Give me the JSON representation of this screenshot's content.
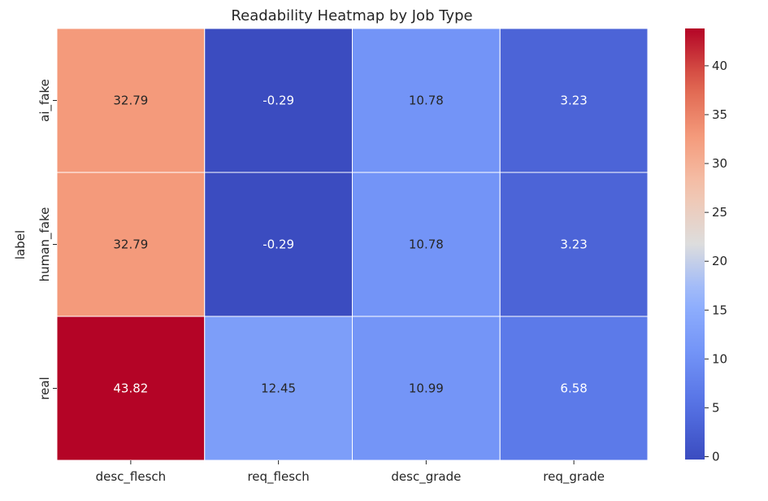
{
  "chart_data": {
    "type": "heatmap",
    "title": "Readability Heatmap by Job Type",
    "xlabel": "",
    "ylabel": "label",
    "columns": [
      "desc_flesch",
      "req_flesch",
      "desc_grade",
      "req_grade"
    ],
    "rows": [
      "ai_fake",
      "human_fake",
      "real"
    ],
    "values": [
      [
        32.79,
        -0.29,
        10.78,
        3.23
      ],
      [
        32.79,
        -0.29,
        10.78,
        3.23
      ],
      [
        43.82,
        12.45,
        10.99,
        6.58
      ]
    ],
    "value_labels": [
      [
        "32.79",
        "-0.29",
        "10.78",
        "3.23"
      ],
      [
        "32.79",
        "-0.29",
        "10.78",
        "3.23"
      ],
      [
        "43.82",
        "12.45",
        "10.99",
        "6.58"
      ]
    ],
    "colormap": "coolwarm",
    "colorbar": {
      "range": [
        -0.29,
        43.82
      ],
      "ticks": [
        0,
        5,
        10,
        15,
        20,
        25,
        30,
        35,
        40
      ],
      "tick_labels": [
        "0",
        "5",
        "10",
        "15",
        "20",
        "25",
        "30",
        "35",
        "40"
      ]
    },
    "grid": false,
    "cell_border_color": "#ffffff"
  }
}
